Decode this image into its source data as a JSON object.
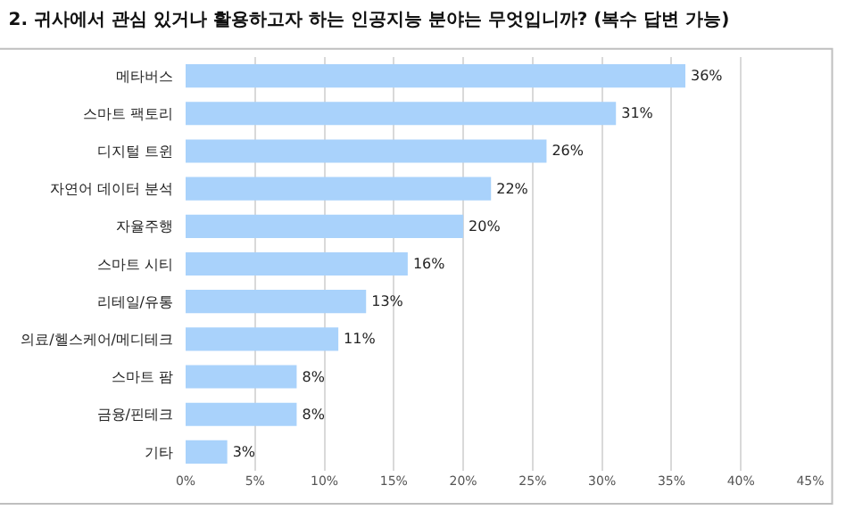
{
  "chart_data": {
    "type": "bar",
    "orientation": "horizontal",
    "title": "2. 귀사에서 관심 있거나 활용하고자 하는 인공지능 분야는 무엇입니까? (복수 답변 가능)",
    "categories": [
      "메타버스",
      "스마트 팩토리",
      "디지털 트윈",
      "자연어 데이터 분석",
      "자율주행",
      "스마트 시티",
      "리테일/유통",
      "의료/헬스케어/메디테크",
      "스마트 팜",
      "금융/핀테크",
      "기타"
    ],
    "values": [
      36,
      31,
      26,
      22,
      20,
      16,
      13,
      11,
      8,
      8,
      3
    ],
    "value_labels": [
      "36%",
      "31%",
      "26%",
      "22%",
      "20%",
      "16%",
      "13%",
      "11%",
      "8%",
      "8%",
      "3%"
    ],
    "color": "#a9d2fb",
    "xlim": [
      0,
      45
    ],
    "xticks": [
      {
        "value": 0,
        "label": "0%"
      },
      {
        "value": 5,
        "label": "5%"
      },
      {
        "value": 10,
        "label": "10%"
      },
      {
        "value": 15,
        "label": "15%"
      },
      {
        "value": 20,
        "label": "20%"
      },
      {
        "value": 25,
        "label": "25%"
      },
      {
        "value": 30,
        "label": "30%"
      },
      {
        "value": 35,
        "label": "35%"
      },
      {
        "value": 40,
        "label": "40%"
      },
      {
        "value": 45,
        "label": "45%"
      }
    ],
    "grid": "x"
  }
}
